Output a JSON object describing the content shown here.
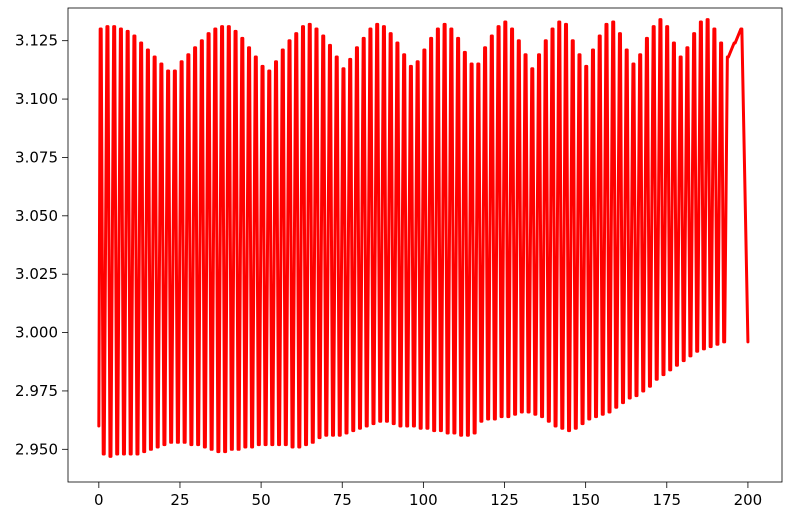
{
  "colors": {
    "series": "#ff0000",
    "axes": "#000000",
    "background": "#ffffff"
  },
  "chart_data": {
    "type": "line",
    "title": "",
    "xlabel": "",
    "ylabel": "",
    "xlim": [
      -9.5,
      210.5
    ],
    "ylim": [
      2.936,
      3.139
    ],
    "x_ticks": [
      0,
      25,
      50,
      75,
      100,
      125,
      150,
      175,
      200
    ],
    "x_tick_labels": [
      "0",
      "25",
      "50",
      "75",
      "100",
      "125",
      "150",
      "175",
      "200"
    ],
    "y_ticks": [
      2.95,
      2.975,
      3.0,
      3.025,
      3.05,
      3.075,
      3.1,
      3.125
    ],
    "y_tick_labels": [
      "2.950",
      "2.975",
      "3.000",
      "3.025",
      "3.050",
      "3.075",
      "3.100",
      "3.125"
    ],
    "grid": false,
    "legend": "none",
    "series": [
      {
        "color": "#ff0000",
        "x_start": 0,
        "x_end": 200,
        "start_value": 2.96,
        "end_value": 2.996,
        "peaks": [
          3.13,
          3.131,
          3.131,
          3.13,
          3.129,
          3.127,
          3.124,
          3.121,
          3.118,
          3.115,
          3.112,
          3.112,
          3.116,
          3.119,
          3.122,
          3.125,
          3.128,
          3.13,
          3.131,
          3.131,
          3.129,
          3.126,
          3.122,
          3.118,
          3.114,
          3.112,
          3.116,
          3.121,
          3.125,
          3.128,
          3.131,
          3.132,
          3.13,
          3.127,
          3.123,
          3.118,
          3.113,
          3.117,
          3.122,
          3.126,
          3.13,
          3.132,
          3.131,
          3.128,
          3.124,
          3.119,
          3.114,
          3.116,
          3.121,
          3.126,
          3.13,
          3.132,
          3.13,
          3.126,
          3.12,
          3.115,
          3.115,
          3.122,
          3.127,
          3.131,
          3.133,
          3.13,
          3.125,
          3.119,
          3.113,
          3.119,
          3.125,
          3.13,
          3.133,
          3.132,
          3.125,
          3.119,
          3.114,
          3.121,
          3.127,
          3.132,
          3.133,
          3.128,
          3.121,
          3.115,
          3.119,
          3.126,
          3.131,
          3.134,
          3.131,
          3.124,
          3.118,
          3.122,
          3.128,
          3.133,
          3.134,
          3.13,
          3.124,
          3.118,
          3.124,
          3.13
        ],
        "troughs": [
          2.948,
          2.947,
          2.948,
          2.948,
          2.948,
          2.948,
          2.949,
          2.95,
          2.951,
          2.952,
          2.953,
          2.953,
          2.953,
          2.952,
          2.952,
          2.951,
          2.95,
          2.949,
          2.949,
          2.95,
          2.95,
          2.951,
          2.951,
          2.952,
          2.952,
          2.952,
          2.952,
          2.952,
          2.951,
          2.951,
          2.952,
          2.953,
          2.955,
          2.956,
          2.956,
          2.956,
          2.957,
          2.958,
          2.959,
          2.96,
          2.961,
          2.962,
          2.962,
          2.961,
          2.96,
          2.96,
          2.96,
          2.959,
          2.959,
          2.958,
          2.958,
          2.957,
          2.957,
          2.956,
          2.956,
          2.957,
          2.962,
          2.963,
          2.963,
          2.964,
          2.964,
          2.965,
          2.966,
          2.966,
          2.965,
          2.964,
          2.962,
          2.96,
          2.959,
          2.958,
          2.959,
          2.961,
          2.963,
          2.964,
          2.965,
          2.966,
          2.968,
          2.97,
          2.972,
          2.973,
          2.975,
          2.977,
          2.98,
          2.982,
          2.984,
          2.986,
          2.988,
          2.99,
          2.992,
          2.993,
          2.994,
          2.995,
          2.996
        ]
      }
    ]
  }
}
